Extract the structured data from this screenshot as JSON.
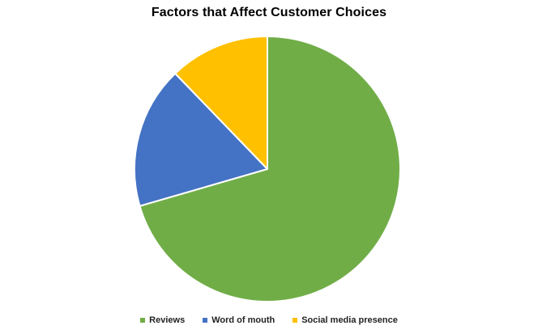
{
  "chart_data": {
    "type": "pie",
    "title": "Factors that Affect Customer Choices",
    "categories": [
      "Reviews",
      "Word of mouth",
      "Social media presence"
    ],
    "values": [
      70.5,
      17.3,
      12.2
    ],
    "colors": [
      "#70AD47",
      "#4472C4",
      "#FFC000"
    ],
    "start_angle_deg": 0,
    "direction": "clockwise",
    "legend_position": "bottom"
  }
}
